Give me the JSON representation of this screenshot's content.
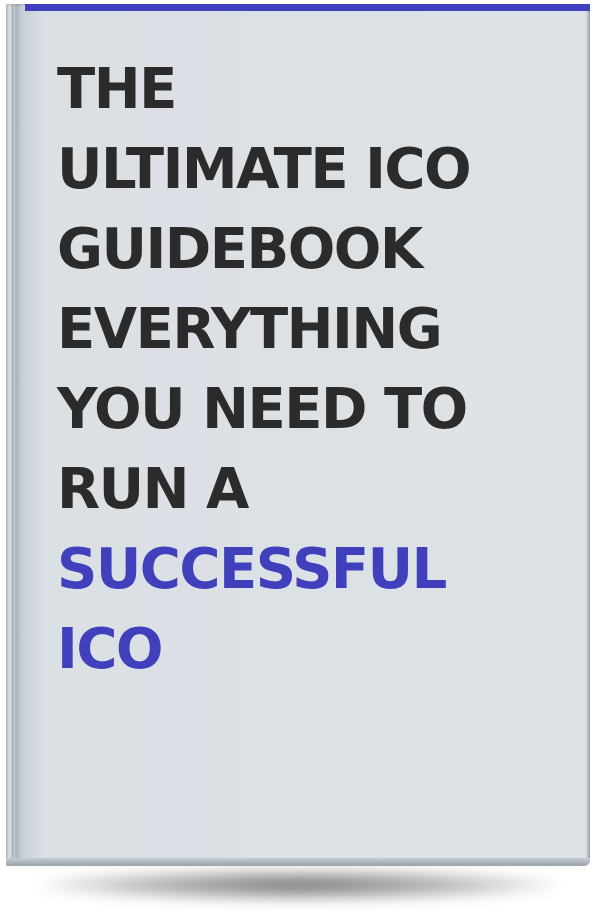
{
  "cover": {
    "title_lines": [
      "THE",
      "ULTIMATE ICO",
      "GUIDEBOOK",
      "EVERYTHING",
      "YOU NEED TO",
      "RUN A"
    ],
    "accent_lines": [
      "SUCCESSFUL",
      "ICO"
    ]
  },
  "colors": {
    "accent": "#4040bd",
    "text": "#2b2b2b",
    "cover": "#dde2e7"
  }
}
